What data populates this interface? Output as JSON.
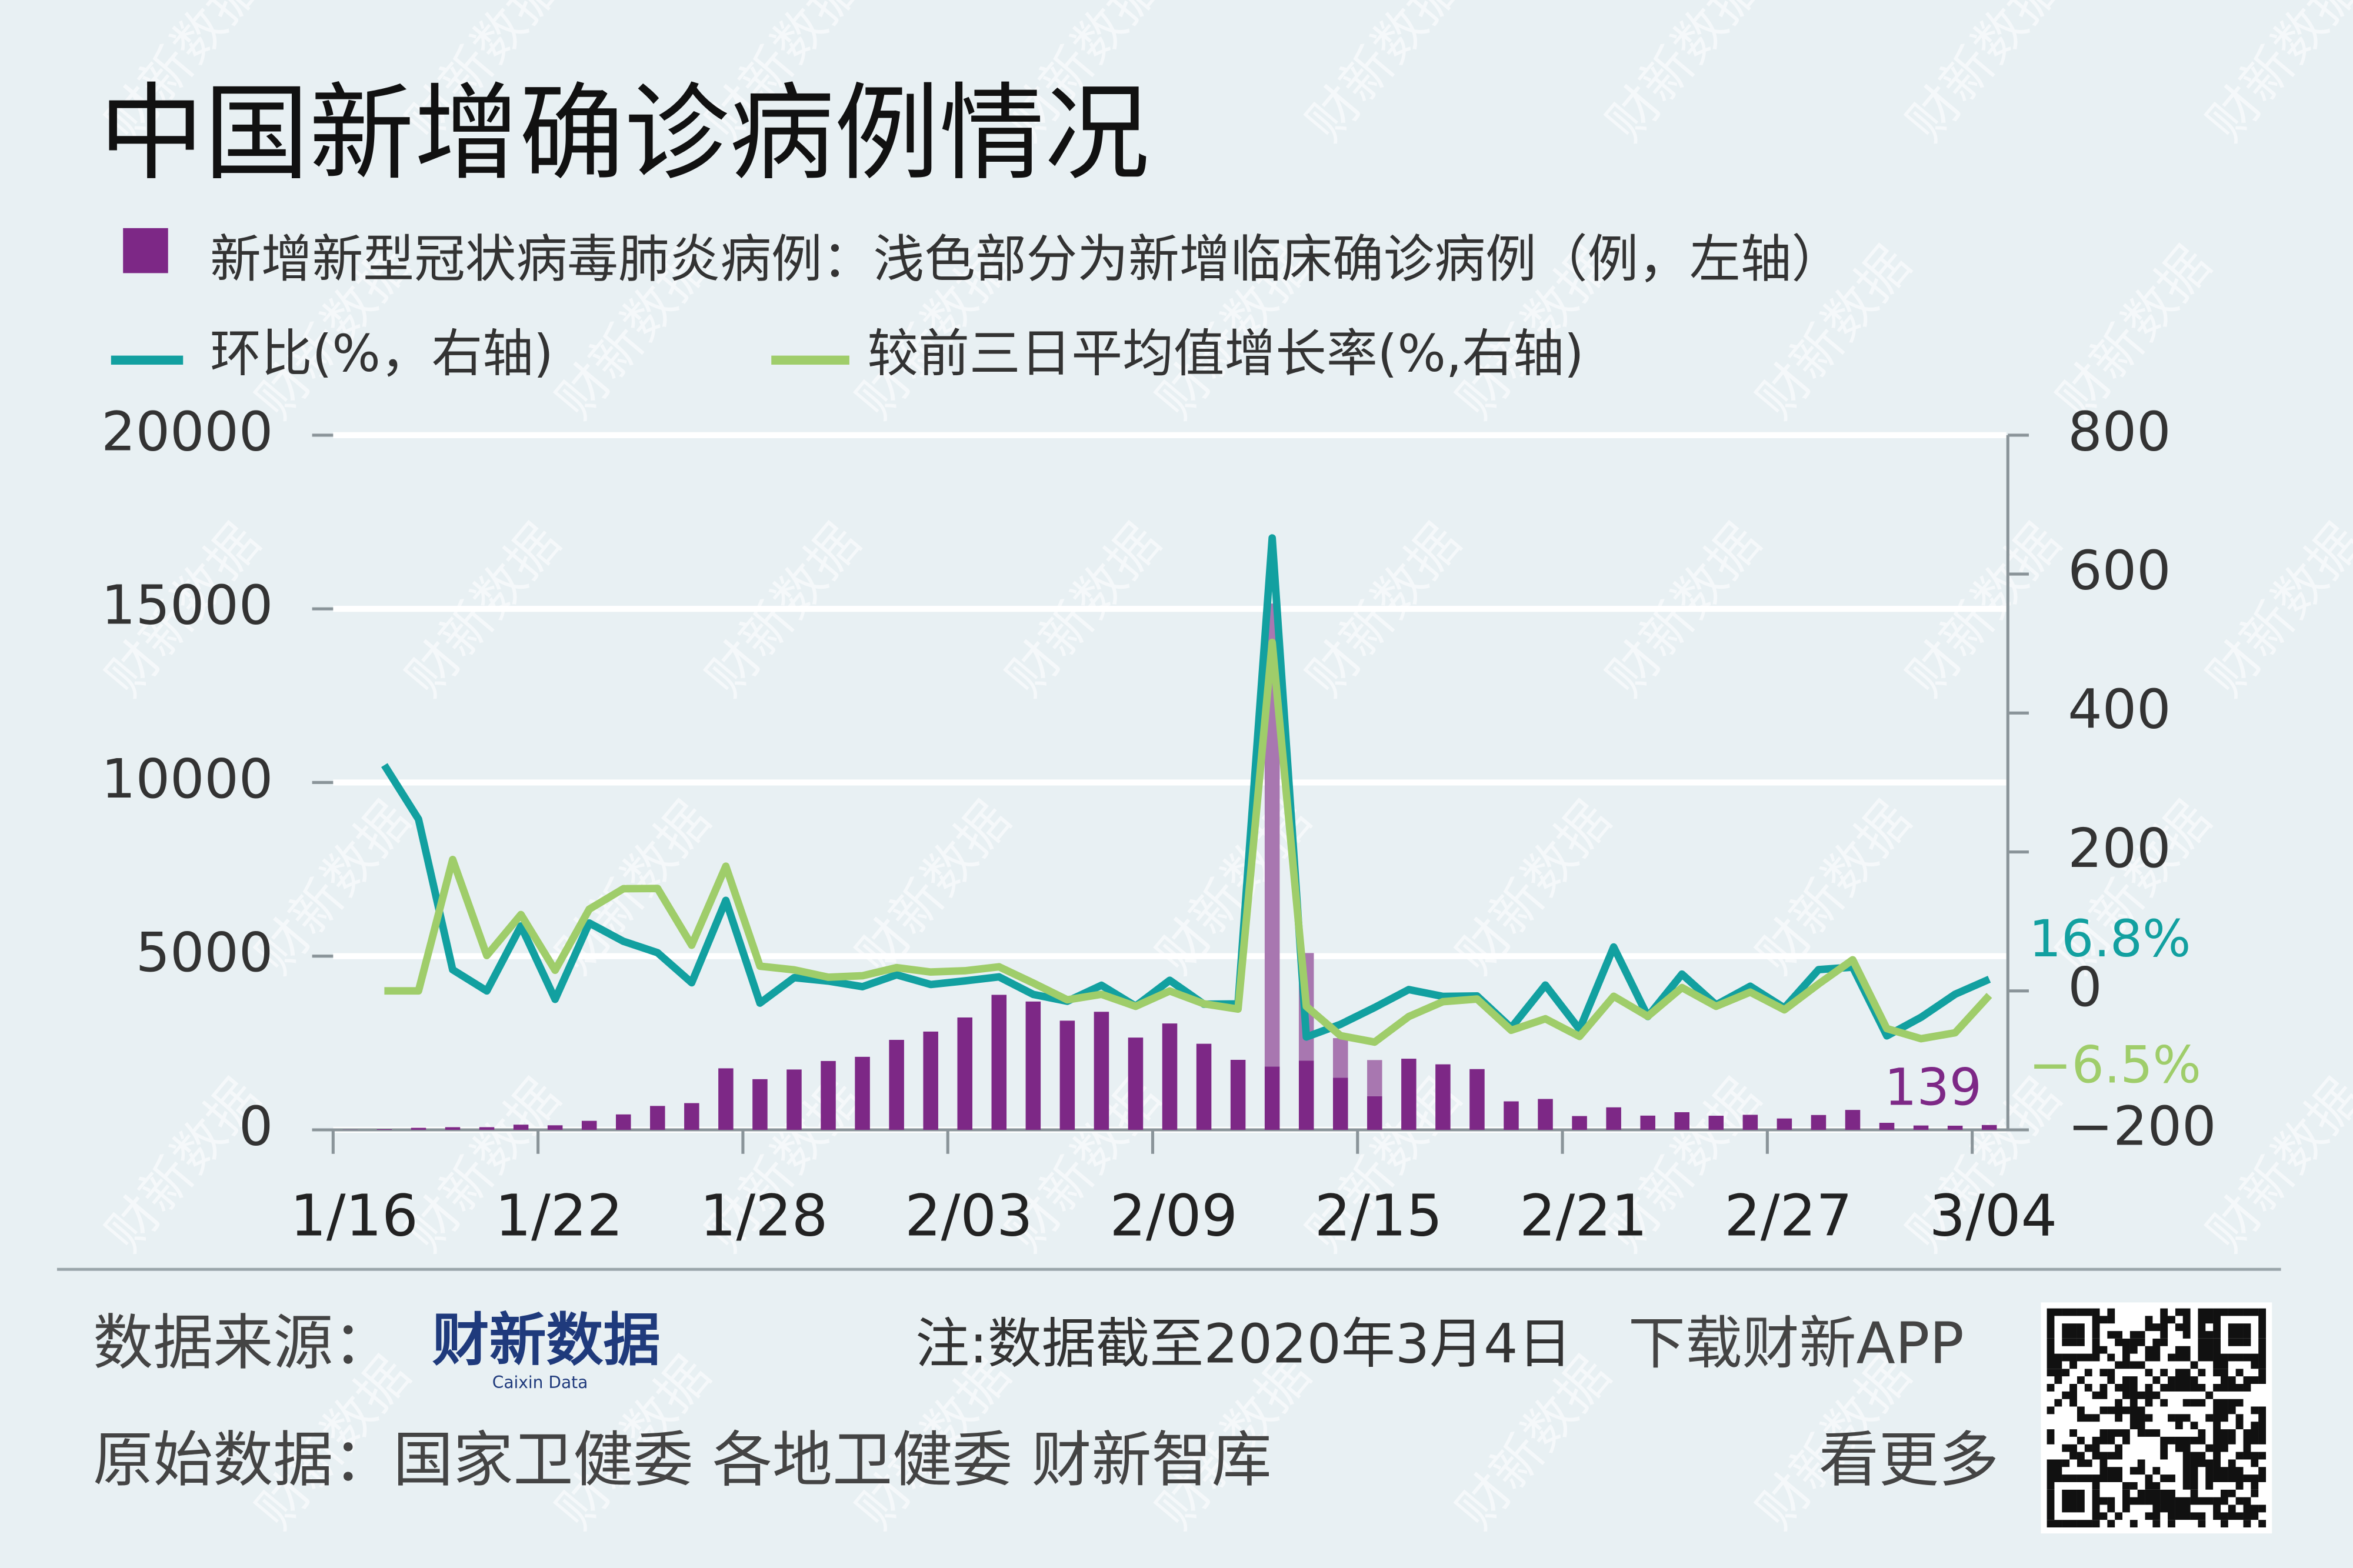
{
  "chart_data": {
    "type": "bar-line",
    "title": "中国新增确诊病例情况",
    "categories": [
      "1/16",
      null,
      null,
      null,
      null,
      null,
      "1/22",
      null,
      null,
      null,
      null,
      null,
      "1/28",
      null,
      null,
      null,
      null,
      null,
      "2/03",
      null,
      null,
      null,
      null,
      null,
      "2/09",
      null,
      null,
      null,
      null,
      null,
      "2/15",
      null,
      null,
      null,
      null,
      null,
      "2/21",
      null,
      null,
      null,
      null,
      null,
      "2/27",
      null,
      null,
      null,
      null,
      null,
      "3/04"
    ],
    "series": [
      {
        "name": "新增新型冠状病毒肺炎病例：浅色部分为新增临床确诊病例（例，左轴）",
        "type": "bar",
        "color": "#7d2886",
        "light_color": "#a877b0",
        "values": [
          4,
          17,
          59,
          77,
          77,
          149,
          131,
          259,
          444,
          688,
          769,
          1771,
          1459,
          1737,
          1982,
          2102,
          2590,
          2829,
          3235,
          3887,
          3694,
          3143,
          3399,
          2656,
          3062,
          2478,
          2015,
          1820,
          1995,
          1503,
          966,
          2048,
          1886,
          1749,
          820,
          889,
          397,
          648,
          409,
          508,
          406,
          433,
          327,
          427,
          573,
          202,
          125,
          119,
          139
        ],
        "light_values": [
          null,
          null,
          null,
          null,
          null,
          null,
          null,
          null,
          null,
          null,
          null,
          null,
          null,
          null,
          null,
          null,
          null,
          null,
          null,
          null,
          null,
          null,
          null,
          null,
          null,
          null,
          null,
          13332,
          3095,
          1138,
          1043,
          null,
          null,
          null,
          null,
          null,
          null,
          null,
          null,
          null,
          null,
          null,
          null,
          null,
          null,
          null,
          null,
          null,
          null
        ]
      },
      {
        "name": "环比(%，右轴)",
        "type": "line",
        "axis": "y2",
        "color": "#12a0a0",
        "values": [
          null,
          325,
          247.1,
          30.5,
          0,
          93.5,
          -12.1,
          97.7,
          71.4,
          55.0,
          11.8,
          130.3,
          -17.6,
          19.1,
          14.1,
          6.1,
          23.2,
          9.2,
          14.4,
          20.2,
          -5.0,
          -14.9,
          8.1,
          -21.9,
          15.3,
          -19.1,
          -18.7,
          652.0,
          -66.4,
          -48.1,
          -23.9,
          1.9,
          -7.9,
          -7.3,
          -53.1,
          8.4,
          -55.3,
          63.2,
          -36.9,
          24.2,
          -20.1,
          6.7,
          -24.5,
          30.6,
          34.2,
          -64.7,
          -38.1,
          -4.8,
          16.8
        ],
        "value_labels": [
          null,
          null,
          null,
          null,
          null,
          null,
          null,
          null,
          null,
          null,
          null,
          null,
          null,
          null,
          null,
          null,
          null,
          null,
          null,
          null,
          null,
          null,
          null,
          null,
          null,
          null,
          null,
          null,
          null,
          null,
          null,
          null,
          null,
          null,
          null,
          null,
          null,
          null,
          null,
          null,
          null,
          null,
          null,
          null,
          null,
          null,
          null,
          null,
          "16.8%"
        ]
      },
      {
        "name": "较前三日平均值增长率(%,右轴)",
        "type": "line",
        "axis": "y2",
        "color": "#9fcd6a",
        "values": [
          null,
          0,
          0,
          189.1,
          51.0,
          109.9,
          29.7,
          117.6,
          147.1,
          147.5,
          65.8,
          179.5,
          35.6,
          30.3,
          19.7,
          21.8,
          33.5,
          27.2,
          29.0,
          34.7,
          11.4,
          -12.8,
          -4.9,
          -22.2,
          -0.1,
          -18.5,
          -26.2,
          501.7,
          -22.3,
          -64.4,
          -73.7,
          -36.9,
          -15.5,
          -11.7,
          -56.7,
          -40.1,
          -65.6,
          -7.7,
          -36.6,
          4.8,
          -22.2,
          -1.8,
          -27.2,
          9.9,
          44.8,
          -54.3,
          -68.8,
          -60.3,
          -6.5
        ],
        "value_labels": [
          null,
          null,
          null,
          null,
          null,
          null,
          null,
          null,
          null,
          null,
          null,
          null,
          null,
          null,
          null,
          null,
          null,
          null,
          null,
          null,
          null,
          null,
          null,
          null,
          null,
          null,
          null,
          null,
          null,
          null,
          null,
          null,
          null,
          null,
          null,
          null,
          null,
          null,
          null,
          null,
          null,
          null,
          null,
          null,
          null,
          null,
          null,
          null,
          "−6.5%"
        ]
      }
    ],
    "ylim": [
      0,
      20000
    ],
    "yticks": [
      0,
      5000,
      10000,
      15000,
      20000
    ],
    "y2lim": [
      -200,
      800
    ],
    "y2ticks": [
      {
        "value": -200,
        "label": "−200"
      },
      0,
      200,
      400,
      600,
      800
    ],
    "grid": true
  },
  "watermark": "财新数据",
  "footer": {
    "source_label": "数据来源：",
    "source_logo": "财新数据",
    "source_logo_en": "Caixin Data",
    "note": "注:数据截至2020年3月4日",
    "download": "下载财新APP",
    "raw": "原始数据：国家卫健委 各地卫健委 财新智库",
    "more": "看更多"
  }
}
